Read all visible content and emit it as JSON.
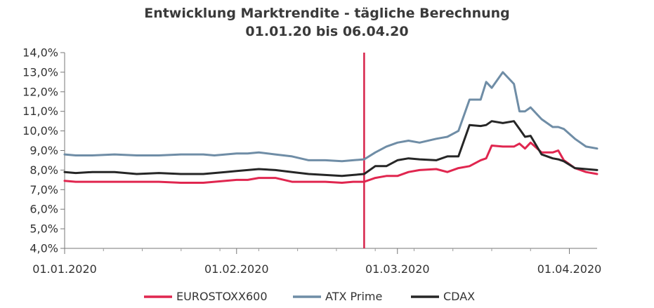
{
  "chart_data": {
    "type": "line",
    "title": "Entwicklung Marktrendite - tägliche Berechnung",
    "subtitle": "01.01.20 bis 06.04.20",
    "xlabel": "",
    "ylabel": "",
    "ylim": [
      4.0,
      14.0
    ],
    "yticks": [
      "4,0%",
      "5,0%",
      "6,0%",
      "7,0%",
      "8,0%",
      "9,0%",
      "10,0%",
      "11,0%",
      "12,0%",
      "13,0%",
      "14,0%"
    ],
    "xlim": [
      "2020-01-01",
      "2020-04-06"
    ],
    "xticks": [
      {
        "date": "2020-01-01",
        "label": "01.01.2020"
      },
      {
        "date": "2020-02-01",
        "label": "01.02.2020"
      },
      {
        "date": "2020-03-01",
        "label": "01.03.2020"
      },
      {
        "date": "2020-04-01",
        "label": "01.04.2020"
      }
    ],
    "grid": false,
    "legend": "bottom",
    "marker_line": {
      "date": "2020-02-24",
      "color": "#d6234a"
    },
    "series": [
      {
        "name": "EUROSTOXX600",
        "color": "#e0264f",
        "points": [
          [
            "2020-01-01",
            7.45
          ],
          [
            "2020-01-03",
            7.4
          ],
          [
            "2020-01-06",
            7.4
          ],
          [
            "2020-01-10",
            7.4
          ],
          [
            "2020-01-14",
            7.4
          ],
          [
            "2020-01-18",
            7.4
          ],
          [
            "2020-01-22",
            7.35
          ],
          [
            "2020-01-26",
            7.35
          ],
          [
            "2020-01-28",
            7.4
          ],
          [
            "2020-01-30",
            7.45
          ],
          [
            "2020-02-01",
            7.5
          ],
          [
            "2020-02-03",
            7.5
          ],
          [
            "2020-02-05",
            7.6
          ],
          [
            "2020-02-08",
            7.6
          ],
          [
            "2020-02-11",
            7.4
          ],
          [
            "2020-02-14",
            7.4
          ],
          [
            "2020-02-17",
            7.4
          ],
          [
            "2020-02-20",
            7.35
          ],
          [
            "2020-02-22",
            7.4
          ],
          [
            "2020-02-24",
            7.4
          ],
          [
            "2020-02-26",
            7.6
          ],
          [
            "2020-02-28",
            7.7
          ],
          [
            "2020-03-01",
            7.7
          ],
          [
            "2020-03-03",
            7.9
          ],
          [
            "2020-03-05",
            8.0
          ],
          [
            "2020-03-08",
            8.05
          ],
          [
            "2020-03-10",
            7.9
          ],
          [
            "2020-03-12",
            8.1
          ],
          [
            "2020-03-14",
            8.2
          ],
          [
            "2020-03-16",
            8.5
          ],
          [
            "2020-03-17",
            8.6
          ],
          [
            "2020-03-18",
            9.25
          ],
          [
            "2020-03-20",
            9.2
          ],
          [
            "2020-03-22",
            9.2
          ],
          [
            "2020-03-23",
            9.35
          ],
          [
            "2020-03-24",
            9.1
          ],
          [
            "2020-03-25",
            9.4
          ],
          [
            "2020-03-27",
            8.9
          ],
          [
            "2020-03-29",
            8.9
          ],
          [
            "2020-03-30",
            9.0
          ],
          [
            "2020-03-31",
            8.5
          ],
          [
            "2020-04-02",
            8.1
          ],
          [
            "2020-04-04",
            7.9
          ],
          [
            "2020-04-06",
            7.8
          ]
        ]
      },
      {
        "name": "ATX Prime",
        "color": "#6f8da6",
        "points": [
          [
            "2020-01-01",
            8.8
          ],
          [
            "2020-01-03",
            8.75
          ],
          [
            "2020-01-06",
            8.75
          ],
          [
            "2020-01-10",
            8.8
          ],
          [
            "2020-01-14",
            8.75
          ],
          [
            "2020-01-18",
            8.75
          ],
          [
            "2020-01-22",
            8.8
          ],
          [
            "2020-01-26",
            8.8
          ],
          [
            "2020-01-28",
            8.75
          ],
          [
            "2020-01-30",
            8.8
          ],
          [
            "2020-02-01",
            8.85
          ],
          [
            "2020-02-03",
            8.85
          ],
          [
            "2020-02-05",
            8.9
          ],
          [
            "2020-02-08",
            8.8
          ],
          [
            "2020-02-11",
            8.7
          ],
          [
            "2020-02-14",
            8.5
          ],
          [
            "2020-02-17",
            8.5
          ],
          [
            "2020-02-20",
            8.45
          ],
          [
            "2020-02-22",
            8.5
          ],
          [
            "2020-02-24",
            8.55
          ],
          [
            "2020-02-26",
            8.9
          ],
          [
            "2020-02-28",
            9.2
          ],
          [
            "2020-03-01",
            9.4
          ],
          [
            "2020-03-03",
            9.5
          ],
          [
            "2020-03-05",
            9.4
          ],
          [
            "2020-03-08",
            9.6
          ],
          [
            "2020-03-10",
            9.7
          ],
          [
            "2020-03-12",
            10.0
          ],
          [
            "2020-03-14",
            11.6
          ],
          [
            "2020-03-16",
            11.6
          ],
          [
            "2020-03-17",
            12.5
          ],
          [
            "2020-03-18",
            12.2
          ],
          [
            "2020-03-20",
            13.0
          ],
          [
            "2020-03-22",
            12.4
          ],
          [
            "2020-03-23",
            11.0
          ],
          [
            "2020-03-24",
            11.0
          ],
          [
            "2020-03-25",
            11.2
          ],
          [
            "2020-03-27",
            10.6
          ],
          [
            "2020-03-29",
            10.2
          ],
          [
            "2020-03-30",
            10.2
          ],
          [
            "2020-03-31",
            10.1
          ],
          [
            "2020-04-02",
            9.6
          ],
          [
            "2020-04-04",
            9.2
          ],
          [
            "2020-04-06",
            9.1
          ]
        ]
      },
      {
        "name": "CDAX",
        "color": "#262626",
        "points": [
          [
            "2020-01-01",
            7.9
          ],
          [
            "2020-01-03",
            7.85
          ],
          [
            "2020-01-06",
            7.9
          ],
          [
            "2020-01-10",
            7.9
          ],
          [
            "2020-01-14",
            7.8
          ],
          [
            "2020-01-18",
            7.85
          ],
          [
            "2020-01-22",
            7.8
          ],
          [
            "2020-01-26",
            7.8
          ],
          [
            "2020-01-28",
            7.85
          ],
          [
            "2020-01-30",
            7.9
          ],
          [
            "2020-02-01",
            7.95
          ],
          [
            "2020-02-03",
            8.0
          ],
          [
            "2020-02-05",
            8.05
          ],
          [
            "2020-02-08",
            8.0
          ],
          [
            "2020-02-11",
            7.9
          ],
          [
            "2020-02-14",
            7.8
          ],
          [
            "2020-02-17",
            7.75
          ],
          [
            "2020-02-20",
            7.7
          ],
          [
            "2020-02-22",
            7.75
          ],
          [
            "2020-02-24",
            7.8
          ],
          [
            "2020-02-26",
            8.2
          ],
          [
            "2020-02-28",
            8.2
          ],
          [
            "2020-03-01",
            8.5
          ],
          [
            "2020-03-03",
            8.6
          ],
          [
            "2020-03-05",
            8.55
          ],
          [
            "2020-03-08",
            8.5
          ],
          [
            "2020-03-10",
            8.7
          ],
          [
            "2020-03-12",
            8.7
          ],
          [
            "2020-03-14",
            10.3
          ],
          [
            "2020-03-16",
            10.25
          ],
          [
            "2020-03-17",
            10.3
          ],
          [
            "2020-03-18",
            10.5
          ],
          [
            "2020-03-20",
            10.4
          ],
          [
            "2020-03-22",
            10.5
          ],
          [
            "2020-03-23",
            10.1
          ],
          [
            "2020-03-24",
            9.7
          ],
          [
            "2020-03-25",
            9.75
          ],
          [
            "2020-03-27",
            8.8
          ],
          [
            "2020-03-29",
            8.6
          ],
          [
            "2020-03-30",
            8.55
          ],
          [
            "2020-03-31",
            8.45
          ],
          [
            "2020-04-02",
            8.1
          ],
          [
            "2020-04-04",
            8.05
          ],
          [
            "2020-04-06",
            8.0
          ]
        ]
      }
    ]
  }
}
